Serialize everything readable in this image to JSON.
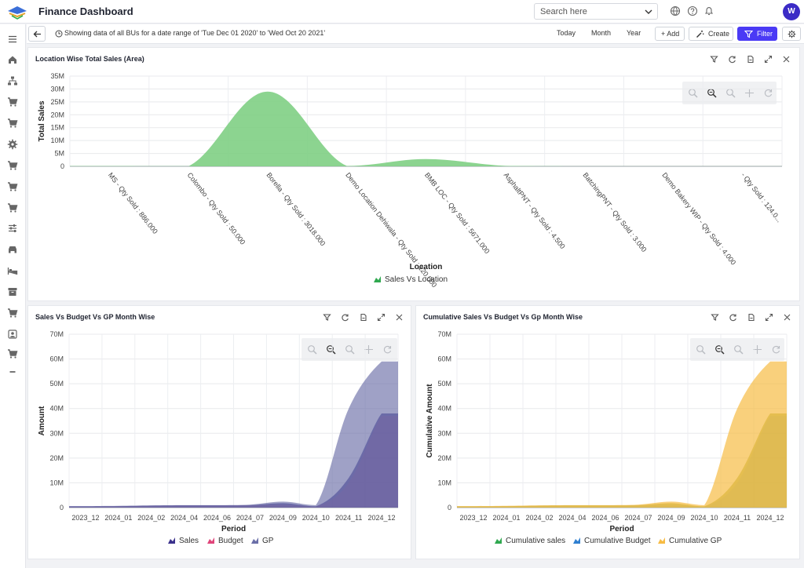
{
  "app": {
    "title": "Finance Dashboard"
  },
  "search": {
    "placeholder": "Search here"
  },
  "user": {
    "initial": "W"
  },
  "subbar": {
    "range_text": "Showing data of all BUs for a date range of 'Tue Dec 01 2020' to 'Wed Oct 20 2021'",
    "today": "Today",
    "month": "Month",
    "year": "Year",
    "add": "+ Add",
    "create": "Create",
    "filter": "Filter"
  },
  "colors": {
    "accent": "#4a3af5",
    "green_area": "#7fcf84",
    "sales": "#3b318c",
    "budget": "#e0457a",
    "gp": "#6b6fa8",
    "cum_sales": "#2fa84f",
    "cum_budget": "#2f7fd0",
    "cum_gp": "#f7bc45",
    "olive": "#a6ad3a"
  },
  "location_chart": {
    "title": "Location Wise Total Sales (Area)",
    "chart_data": {
      "type": "area",
      "title": "Location Wise Total Sales (Area)",
      "xlabel": "Location",
      "ylabel": "Total Sales",
      "ylim": [
        0,
        35000000
      ],
      "yticks": [
        "0",
        "5M",
        "10M",
        "15M",
        "20M",
        "25M",
        "30M",
        "35M"
      ],
      "categories": [
        "MS - Qty Sold : 886.000",
        "Colombo - Qty Sold : 50.000",
        "Borella - Qty Sold : 3018.000",
        "Demo Location Dehiwala - Qty Sold : 120.000",
        "BMB LOC - Qty Sold : 5671.000",
        "AsphaltPNT - Qty Sold : 4.500",
        "BatchingPNT - Qty Sold : 3.000",
        "Demo Bakery WIP - Qty Sold : 4.000",
        "- Qty Sold : 124.0..."
      ],
      "series": [
        {
          "name": "Sales Vs Location",
          "values": [
            100000,
            50000,
            29000000,
            150000,
            2800000,
            200000,
            50000,
            30000,
            20000
          ]
        }
      ],
      "legend": "bottom-center",
      "grid": true
    }
  },
  "sales_chart": {
    "title": "Sales Vs Budget Vs GP Month Wise",
    "chart_data": {
      "type": "area",
      "title": "Sales Vs Budget Vs GP Month Wise",
      "xlabel": "Period",
      "ylabel": "Amount",
      "ylim": [
        0,
        70000000
      ],
      "yticks": [
        "0",
        "10M",
        "20M",
        "30M",
        "40M",
        "50M",
        "60M",
        "70M"
      ],
      "categories": [
        "2023_12",
        "2024_01",
        "2024_02",
        "2024_04",
        "2024_06",
        "2024_07",
        "2024_09",
        "2024_10",
        "2024_11",
        "2024_12"
      ],
      "series": [
        {
          "name": "Sales",
          "values": [
            500000,
            600000,
            800000,
            900000,
            900000,
            1000000,
            1800000,
            500000,
            12000000,
            38000000
          ]
        },
        {
          "name": "Budget",
          "values": [
            400000,
            500000,
            700000,
            800000,
            800000,
            900000,
            1200000,
            400000,
            10000000,
            37000000
          ]
        },
        {
          "name": "GP",
          "values": [
            600000,
            700000,
            900000,
            1000000,
            1000000,
            1200000,
            2400000,
            1000000,
            40000000,
            59000000
          ]
        }
      ],
      "legend": "bottom-center",
      "grid": true
    }
  },
  "cumulative_chart": {
    "title": "Cumulative Sales Vs Budget Vs Gp Month Wise",
    "chart_data": {
      "type": "area",
      "title": "Cumulative Sales Vs Budget Vs Gp Month Wise",
      "xlabel": "Period",
      "ylabel": "Cumulative Amount",
      "ylim": [
        0,
        70000000
      ],
      "yticks": [
        "0",
        "10M",
        "20M",
        "30M",
        "40M",
        "50M",
        "60M",
        "70M"
      ],
      "categories": [
        "2023_12",
        "2024_01",
        "2024_02",
        "2024_04",
        "2024_06",
        "2024_07",
        "2024_09",
        "2024_10",
        "2024_11",
        "2024_12"
      ],
      "series": [
        {
          "name": "Cumulative sales",
          "values": [
            500000,
            600000,
            800000,
            900000,
            900000,
            1000000,
            1800000,
            500000,
            12000000,
            38000000
          ]
        },
        {
          "name": "Cumulative Budget",
          "values": [
            400000,
            500000,
            700000,
            800000,
            800000,
            900000,
            1200000,
            400000,
            10000000,
            37000000
          ]
        },
        {
          "name": "Cumulative GP",
          "values": [
            600000,
            700000,
            900000,
            1000000,
            1000000,
            1200000,
            2400000,
            1000000,
            40000000,
            59000000
          ]
        }
      ],
      "legend": "bottom-center",
      "grid": true
    }
  }
}
